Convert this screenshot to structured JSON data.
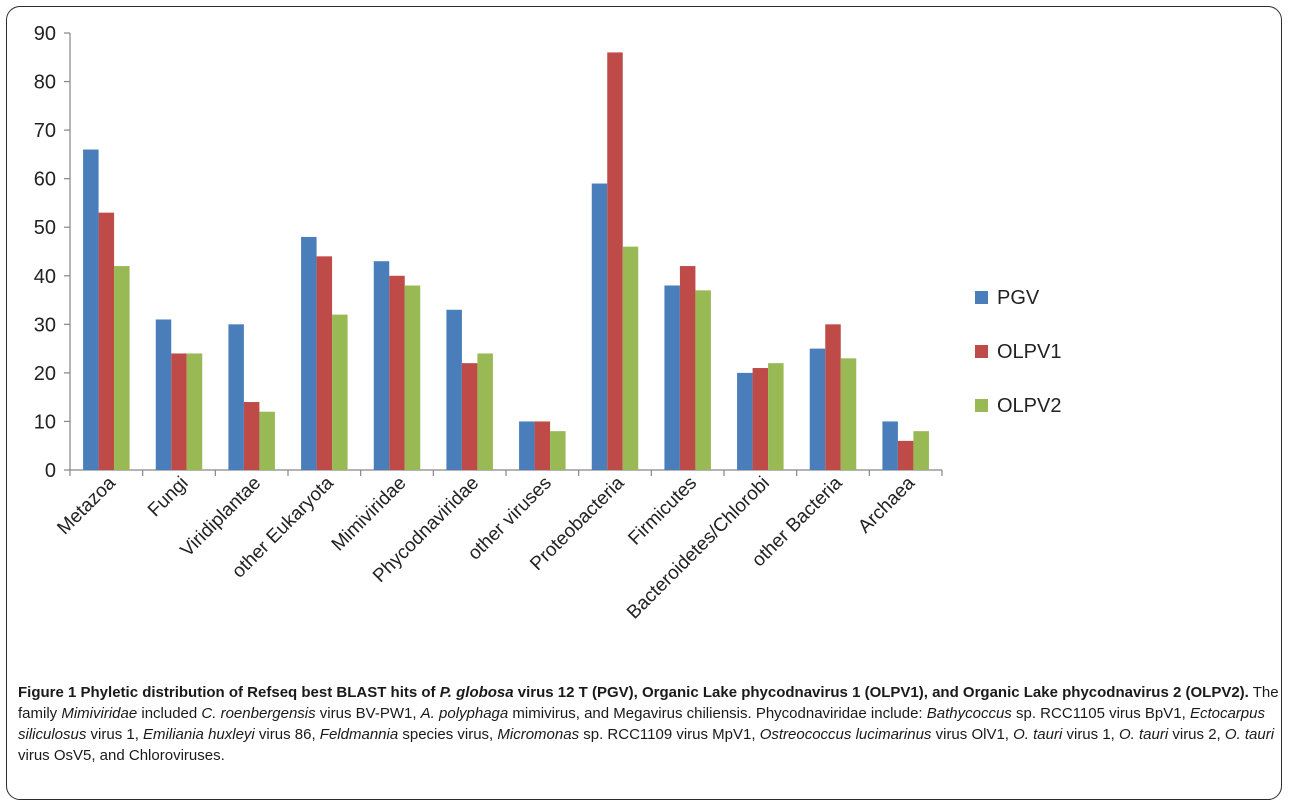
{
  "chart_data": {
    "type": "bar",
    "categories": [
      "Metazoa",
      "Fungi",
      "Viridiplantae",
      "other Eukaryota",
      "Mimiviridae",
      "Phycodnaviridae",
      "other viruses",
      "Proteobacteria",
      "Firmicutes",
      "Bacteroidetes/Chlorobi",
      "other Bacteria",
      "Archaea"
    ],
    "series": [
      {
        "name": "PGV",
        "color": "#4a7ebb",
        "values": [
          66,
          31,
          30,
          48,
          43,
          33,
          10,
          59,
          38,
          20,
          25,
          10
        ]
      },
      {
        "name": "OLPV1",
        "color": "#be4b48",
        "values": [
          53,
          24,
          14,
          44,
          40,
          22,
          10,
          86,
          42,
          21,
          30,
          6
        ]
      },
      {
        "name": "OLPV2",
        "color": "#98b954",
        "values": [
          42,
          24,
          12,
          32,
          38,
          24,
          8,
          46,
          37,
          22,
          23,
          8
        ]
      }
    ],
    "yticks": [
      "0",
      "10",
      "20",
      "30",
      "40",
      "50",
      "60",
      "70",
      "80",
      "90"
    ],
    "ylim": [
      0,
      90
    ],
    "legend": "right",
    "grid": false
  },
  "caption": {
    "parts": [
      {
        "t": "Figure 1 Phyletic distribution of Refseq best BLAST hits of ",
        "s": "b"
      },
      {
        "t": "P. globosa",
        "s": "bi"
      },
      {
        "t": " virus 12 T (PGV), Organic Lake phycodnavirus 1 (OLPV1), and Organic Lake phycodnavirus 2 (OLPV2).",
        "s": "b"
      },
      {
        "t": " The family ",
        "s": ""
      },
      {
        "t": "Mimiviridae",
        "s": "i"
      },
      {
        "t": " included ",
        "s": ""
      },
      {
        "t": "C. roenbergensis",
        "s": "i"
      },
      {
        "t": " virus BV-PW1, ",
        "s": ""
      },
      {
        "t": "A. polyphaga",
        "s": "i"
      },
      {
        "t": " mimivirus, and Megavirus chiliensis. Phycodnaviridae include: ",
        "s": ""
      },
      {
        "t": "Bathycoccus",
        "s": "i"
      },
      {
        "t": " sp. RCC1105 virus BpV1, ",
        "s": ""
      },
      {
        "t": "Ectocarpus siliculosus",
        "s": "i"
      },
      {
        "t": " virus 1, ",
        "s": ""
      },
      {
        "t": "Emiliania huxleyi",
        "s": "i"
      },
      {
        "t": " virus 86, ",
        "s": ""
      },
      {
        "t": "Feldmannia",
        "s": "i"
      },
      {
        "t": " species virus, ",
        "s": ""
      },
      {
        "t": "Micromonas",
        "s": "i"
      },
      {
        "t": " sp. RCC1109 virus MpV1, ",
        "s": ""
      },
      {
        "t": "Ostreococcus lucimarinus",
        "s": "i"
      },
      {
        "t": " virus OlV1, ",
        "s": ""
      },
      {
        "t": "O. tauri",
        "s": "i"
      },
      {
        "t": " virus 1, ",
        "s": ""
      },
      {
        "t": "O. tauri",
        "s": "i"
      },
      {
        "t": " virus 2, ",
        "s": ""
      },
      {
        "t": "O. tauri",
        "s": "i"
      },
      {
        "t": " virus OsV5, and Chloroviruses.",
        "s": ""
      }
    ]
  }
}
